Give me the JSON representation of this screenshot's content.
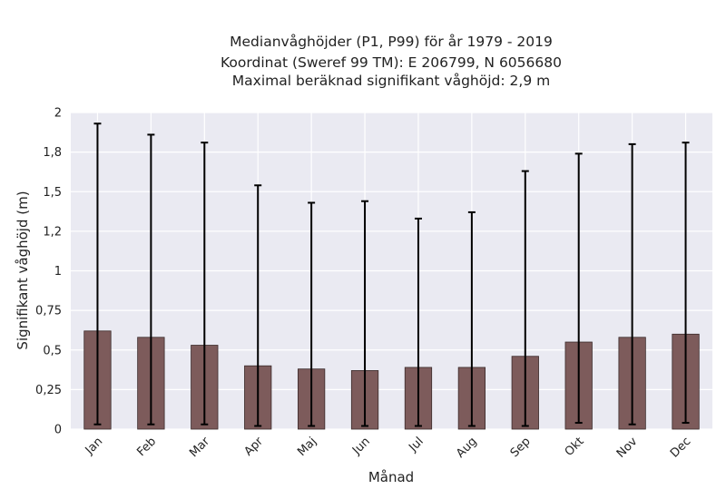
{
  "chart_data": {
    "type": "bar",
    "title_lines": [
      "Medianvåghöjder (P1, P99) för år 1979 - 2019",
      "Koordinat (Sweref 99 TM): E 206799, N 6056680",
      "Maximal beräknad signifikant våghöjd: 2,9 m"
    ],
    "xlabel": "Månad",
    "ylabel": "Signifikant våghöjd (m)",
    "categories": [
      "Jan",
      "Feb",
      "Mar",
      "Apr",
      "Maj",
      "Jun",
      "Jul",
      "Aug",
      "Sep",
      "Okt",
      "Nov",
      "Dec"
    ],
    "values": [
      0.62,
      0.58,
      0.53,
      0.4,
      0.38,
      0.37,
      0.39,
      0.39,
      0.46,
      0.55,
      0.58,
      0.6
    ],
    "p1": [
      0.03,
      0.03,
      0.03,
      0.02,
      0.02,
      0.02,
      0.02,
      0.02,
      0.02,
      0.04,
      0.03,
      0.04
    ],
    "p99": [
      1.93,
      1.86,
      1.81,
      1.54,
      1.43,
      1.44,
      1.33,
      1.37,
      1.63,
      1.74,
      1.8,
      1.81
    ],
    "ylim": [
      0,
      2.0
    ],
    "yticks": [
      0,
      0.25,
      0.5,
      0.75,
      1.0,
      1.25,
      1.5,
      1.75,
      2.0
    ],
    "ytick_labels": [
      "0",
      "0,25",
      "0,5",
      "0,75",
      "1",
      "1,2",
      "1,5",
      "1,8",
      "2"
    ],
    "grid": true,
    "colors": {
      "bar": "#7d5b5b",
      "bar_edge": "#3a2a2a",
      "errorbar": "#000000",
      "background": "#eaeaf2",
      "grid": "#ffffff"
    }
  }
}
